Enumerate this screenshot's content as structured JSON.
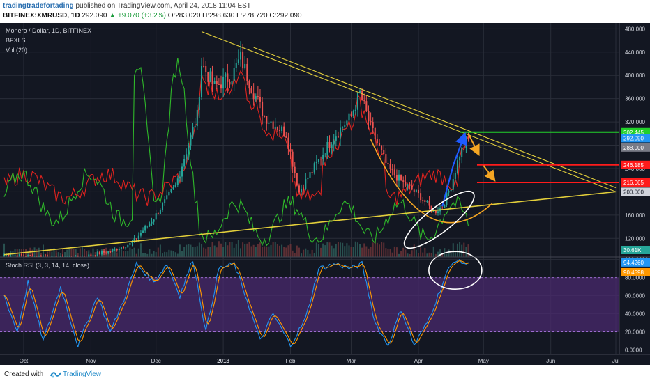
{
  "header": {
    "author": "tradingtradefortading",
    "published": "published on TradingView.com, April 24, 2018 11:04 EST",
    "symbol": "BITFINEX:XMRUSD, 1D",
    "last": "292.090",
    "change": "▲ +9.070 (+3.2%)",
    "ohlc": "O:283.020 H:298.630 L:278.720 C:292.090"
  },
  "legend": {
    "title": "Monero / Dollar, 1D, BITFINEX",
    "ind1": "BFXLS",
    "ind2": "Vol (20)",
    "stoch": "Stoch RSI (3, 3, 14, 14, close)"
  },
  "footer": {
    "created_with": "Created with",
    "brand": "TradingView"
  },
  "colors": {
    "background": "#131722",
    "grid": "#2a2e39",
    "up": "#26a69a",
    "down": "#ef5350",
    "trendline": "#e3cf3b",
    "bfxls_red": "#e0231f",
    "bfxls_green": "#2fb82a",
    "stoch_k": "#2196f3",
    "stoch_d": "#ff9800",
    "stoch_band": "#4a2a6e",
    "level_green": "#22d02a",
    "level_red": "#ff1b1b",
    "arrow_orange": "#f5a623",
    "arrow_blue": "#1e5bff"
  },
  "chart_data": [
    {
      "type": "candlestick",
      "pane": "price",
      "title": "Monero / Dollar, 1D, BITFINEX",
      "x_labels": [
        "Oct",
        "Nov",
        "Dec",
        "2018",
        "Feb",
        "Mar",
        "Apr",
        "May",
        "Jun",
        "Jul"
      ],
      "y_ticks": [
        120,
        160,
        200,
        240,
        280,
        320,
        360,
        400,
        440,
        480
      ],
      "ylim": [
        88,
        490
      ],
      "price_tags": [
        "302.445",
        "292.090",
        "288.000",
        "246.185",
        "216.065",
        "200.000"
      ],
      "close_path": [
        {
          "x": "Sep 22",
          "y": 92
        },
        {
          "x": "Oct 10",
          "y": 88
        },
        {
          "x": "Oct 25",
          "y": 86
        },
        {
          "x": "Nov 10",
          "y": 98
        },
        {
          "x": "Nov 20",
          "y": 112
        },
        {
          "x": "Nov 30",
          "y": 155
        },
        {
          "x": "Dec 10",
          "y": 210
        },
        {
          "x": "Dec 20",
          "y": 330
        },
        {
          "x": "Dec 22",
          "y": 420
        },
        {
          "x": "Dec 28",
          "y": 380
        },
        {
          "x": "Jan 5",
          "y": 400
        },
        {
          "x": "Jan 9",
          "y": 430
        },
        {
          "x": "Jan 14",
          "y": 380
        },
        {
          "x": "Jan 20",
          "y": 330
        },
        {
          "x": "Jan 30",
          "y": 300
        },
        {
          "x": "Feb 5",
          "y": 200
        },
        {
          "x": "Feb 10",
          "y": 230
        },
        {
          "x": "Feb 20",
          "y": 290
        },
        {
          "x": "Mar 1",
          "y": 330
        },
        {
          "x": "Mar 5",
          "y": 370
        },
        {
          "x": "Mar 10",
          "y": 310
        },
        {
          "x": "Mar 18",
          "y": 240
        },
        {
          "x": "Mar 25",
          "y": 215
        },
        {
          "x": "Apr 2",
          "y": 192
        },
        {
          "x": "Apr 8",
          "y": 165
        },
        {
          "x": "Apr 12",
          "y": 175
        },
        {
          "x": "Apr 16",
          "y": 210
        },
        {
          "x": "Apr 20",
          "y": 265
        },
        {
          "x": "Apr 24",
          "y": 292
        }
      ],
      "levels": [
        302.445,
        246.185,
        216.065
      ]
    },
    {
      "type": "bar",
      "pane": "volume",
      "name": "Vol (20)",
      "last_label": "30.61K"
    },
    {
      "type": "line",
      "pane": "stoch",
      "name": "Stoch RSI (3, 3, 14, 14, close)",
      "y_ticks": [
        0,
        20,
        40,
        60,
        80,
        100
      ],
      "ylim": [
        -5,
        102
      ],
      "band": [
        20,
        80
      ],
      "last_k": "94.4260",
      "last_d": "90.4598",
      "k_path": [
        {
          "x": "Sep 22",
          "y": 60
        },
        {
          "x": "Sep 28",
          "y": 20
        },
        {
          "x": "Oct 3",
          "y": 75
        },
        {
          "x": "Oct 10",
          "y": 10
        },
        {
          "x": "Oct 18",
          "y": 70
        },
        {
          "x": "Oct 26",
          "y": 5
        },
        {
          "x": "Nov 4",
          "y": 60
        },
        {
          "x": "Nov 10",
          "y": 20
        },
        {
          "x": "Nov 16",
          "y": 55
        },
        {
          "x": "Nov 22",
          "y": 95
        },
        {
          "x": "Nov 30",
          "y": 75
        },
        {
          "x": "Dec 6",
          "y": 95
        },
        {
          "x": "Dec 12",
          "y": 60
        },
        {
          "x": "Dec 18",
          "y": 100
        },
        {
          "x": "Dec 24",
          "y": 20
        },
        {
          "x": "Dec 30",
          "y": 90
        },
        {
          "x": "Jan 6",
          "y": 95
        },
        {
          "x": "Jan 12",
          "y": 55
        },
        {
          "x": "Jan 18",
          "y": 10
        },
        {
          "x": "Jan 24",
          "y": 40
        },
        {
          "x": "Feb 1",
          "y": 5
        },
        {
          "x": "Feb 8",
          "y": 35
        },
        {
          "x": "Feb 14",
          "y": 90
        },
        {
          "x": "Feb 22",
          "y": 95
        },
        {
          "x": "Mar 1",
          "y": 90
        },
        {
          "x": "Mar 6",
          "y": 95
        },
        {
          "x": "Mar 12",
          "y": 30
        },
        {
          "x": "Mar 18",
          "y": 5
        },
        {
          "x": "Mar 24",
          "y": 45
        },
        {
          "x": "Mar 30",
          "y": 5
        },
        {
          "x": "Apr 5",
          "y": 30
        },
        {
          "x": "Apr 10",
          "y": 60
        },
        {
          "x": "Apr 14",
          "y": 85
        },
        {
          "x": "Apr 18",
          "y": 100
        },
        {
          "x": "Apr 24",
          "y": 94.4
        }
      ]
    }
  ]
}
